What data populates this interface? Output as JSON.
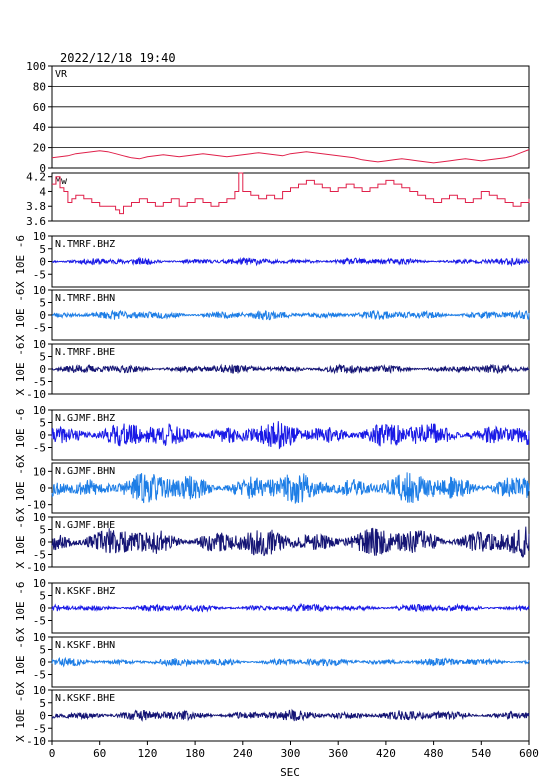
{
  "header": {
    "timestamp": "2022/12/18  19:40"
  },
  "colors": {
    "vr": "#e0204a",
    "mw": "#e0204a",
    "bhz": "#1a1ae6",
    "bhn": "#1e7ee6",
    "bhe": "#151575",
    "grid": "#000000"
  },
  "chart_data": {
    "type": "line",
    "x_axis": {
      "label": "SEC",
      "range": [
        0,
        600
      ],
      "ticks": [
        0,
        60,
        120,
        180,
        240,
        300,
        360,
        420,
        480,
        540,
        600
      ]
    },
    "panels": [
      {
        "id": "vr",
        "label": "VR",
        "ylim": [
          0,
          100
        ],
        "yticks": [
          0,
          20,
          40,
          60,
          80,
          100
        ],
        "gridlines": true,
        "ylabel": "",
        "series": {
          "x": [
            0,
            10,
            20,
            30,
            40,
            50,
            60,
            70,
            80,
            90,
            100,
            110,
            120,
            130,
            140,
            150,
            160,
            170,
            180,
            190,
            200,
            210,
            220,
            230,
            240,
            250,
            260,
            270,
            280,
            290,
            300,
            310,
            320,
            330,
            340,
            350,
            360,
            370,
            380,
            390,
            400,
            410,
            420,
            430,
            440,
            450,
            460,
            470,
            480,
            490,
            500,
            510,
            520,
            530,
            540,
            550,
            560,
            570,
            580,
            590,
            600
          ],
          "y": [
            10,
            11,
            12,
            14,
            15,
            16,
            17,
            16,
            14,
            12,
            10,
            9,
            11,
            12,
            13,
            12,
            11,
            12,
            13,
            14,
            13,
            12,
            11,
            12,
            13,
            14,
            15,
            14,
            13,
            12,
            14,
            15,
            16,
            15,
            14,
            13,
            12,
            11,
            10,
            8,
            7,
            6,
            7,
            8,
            9,
            8,
            7,
            6,
            5,
            6,
            7,
            8,
            9,
            8,
            7,
            8,
            9,
            10,
            12,
            15,
            18
          ]
        }
      },
      {
        "id": "mw",
        "label": "Mw",
        "ylim": [
          3.6,
          4.25
        ],
        "yticks": [
          3.6,
          3.8,
          4.0,
          4.2
        ],
        "gridlines": false,
        "ylabel": "",
        "series": {
          "x": [
            0,
            5,
            10,
            15,
            20,
            25,
            30,
            40,
            50,
            60,
            70,
            80,
            85,
            90,
            100,
            110,
            120,
            130,
            140,
            150,
            160,
            170,
            180,
            190,
            200,
            210,
            220,
            230,
            235,
            240,
            250,
            260,
            270,
            280,
            290,
            300,
            310,
            320,
            330,
            340,
            350,
            360,
            370,
            380,
            390,
            400,
            410,
            420,
            430,
            440,
            450,
            460,
            470,
            480,
            490,
            500,
            510,
            520,
            530,
            540,
            550,
            560,
            570,
            580,
            590,
            600
          ],
          "y": [
            4.1,
            4.2,
            4.05,
            4.0,
            3.85,
            3.9,
            3.95,
            3.9,
            3.85,
            3.8,
            3.8,
            3.75,
            3.7,
            3.8,
            3.85,
            3.9,
            3.85,
            3.8,
            3.85,
            3.9,
            3.8,
            3.85,
            3.9,
            3.85,
            3.8,
            3.85,
            3.9,
            4.0,
            4.25,
            4.0,
            3.95,
            3.9,
            3.95,
            3.9,
            4.0,
            4.05,
            4.1,
            4.15,
            4.1,
            4.05,
            4.0,
            4.05,
            4.1,
            4.05,
            4.0,
            4.05,
            4.1,
            4.15,
            4.1,
            4.05,
            4.0,
            3.95,
            3.9,
            3.85,
            3.9,
            3.95,
            3.9,
            3.85,
            3.9,
            4.0,
            3.95,
            3.9,
            3.85,
            3.8,
            3.85,
            3.9
          ]
        }
      },
      {
        "id": "tmrf-bhz",
        "label": "N.TMRF.BHZ",
        "ylim": [
          -10,
          10
        ],
        "yticks": [
          -5,
          0,
          5,
          10
        ],
        "color_key": "bhz",
        "amplitude": 1.2,
        "seed": 11,
        "ylabel": "X 10E -6"
      },
      {
        "id": "tmrf-bhn",
        "label": "N.TMRF.BHN",
        "ylim": [
          -10,
          10
        ],
        "yticks": [
          -5,
          0,
          5,
          10
        ],
        "color_key": "bhn",
        "amplitude": 1.6,
        "seed": 23,
        "ylabel": "X 10E -6"
      },
      {
        "id": "tmrf-bhe",
        "label": "N.TMRF.BHE",
        "ylim": [
          -10,
          10
        ],
        "yticks": [
          -10,
          -5,
          0,
          5,
          10
        ],
        "color_key": "bhe",
        "amplitude": 1.5,
        "seed": 37,
        "ylabel": "X 10E -6"
      },
      {
        "id": "gjmf-bhz",
        "label": "N.GJMF.BHZ",
        "ylim": [
          -10,
          10
        ],
        "yticks": [
          -5,
          0,
          5,
          10
        ],
        "color_key": "bhz",
        "amplitude": 4.5,
        "seed": 41,
        "ylabel": "X 10E -6"
      },
      {
        "id": "gjmf-bhn",
        "label": "N.GJMF.BHN",
        "ylim": [
          -15,
          15
        ],
        "yticks": [
          -10,
          0,
          10
        ],
        "color_key": "bhn",
        "amplitude": 8.0,
        "seed": 53,
        "ylabel": "X 10E -6"
      },
      {
        "id": "gjmf-bhe",
        "label": "N.GJMF.BHE",
        "ylim": [
          -10,
          10
        ],
        "yticks": [
          -10,
          -5,
          0,
          5,
          10
        ],
        "color_key": "bhe",
        "amplitude": 5.0,
        "seed": 67,
        "ylabel": "X 10E -6"
      },
      {
        "id": "kskf-bhz",
        "label": "N.KSKF.BHZ",
        "ylim": [
          -10,
          10
        ],
        "yticks": [
          -5,
          0,
          5,
          10
        ],
        "color_key": "bhz",
        "amplitude": 1.3,
        "seed": 71,
        "ylabel": "X 10E -6"
      },
      {
        "id": "kskf-bhn",
        "label": "N.KSKF.BHN",
        "ylim": [
          -10,
          10
        ],
        "yticks": [
          -5,
          0,
          5,
          10
        ],
        "color_key": "bhn",
        "amplitude": 1.4,
        "seed": 83,
        "ylabel": "X 10E -6"
      },
      {
        "id": "kskf-bhe",
        "label": "N.KSKF.BHE",
        "ylim": [
          -10,
          10
        ],
        "yticks": [
          -10,
          -5,
          0,
          5,
          10
        ],
        "color_key": "bhe",
        "amplitude": 1.8,
        "seed": 97,
        "ylabel": "X 10E -6"
      }
    ]
  }
}
